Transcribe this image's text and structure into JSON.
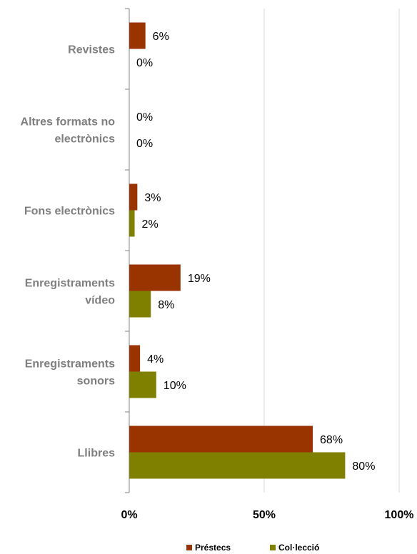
{
  "chart_data": {
    "type": "bar",
    "orientation": "horizontal",
    "categories": [
      [
        "Revistes"
      ],
      [
        "Altres formats no",
        "electrònics"
      ],
      [
        "Fons electrònics"
      ],
      [
        "Enregistraments",
        "vídeo"
      ],
      [
        "Enregistraments",
        "sonors"
      ],
      [
        "Llibres"
      ]
    ],
    "series": [
      {
        "name": "Préstecs",
        "color": "#993300",
        "values": [
          6,
          0,
          3,
          19,
          4,
          68
        ],
        "labels": [
          "6%",
          "0%",
          "3%",
          "19%",
          "4%",
          "68%"
        ]
      },
      {
        "name": "Col·lecció",
        "color": "#808000",
        "values": [
          0,
          0,
          2,
          8,
          10,
          80
        ],
        "labels": [
          "0%",
          "0%",
          "2%",
          "8%",
          "10%",
          "80%"
        ]
      }
    ],
    "xlim": [
      0,
      100
    ],
    "xticks": [
      0,
      50,
      100
    ],
    "xtick_labels": [
      "0%",
      "50%",
      "100%"
    ],
    "grid": true,
    "legend_position": "bottom"
  }
}
